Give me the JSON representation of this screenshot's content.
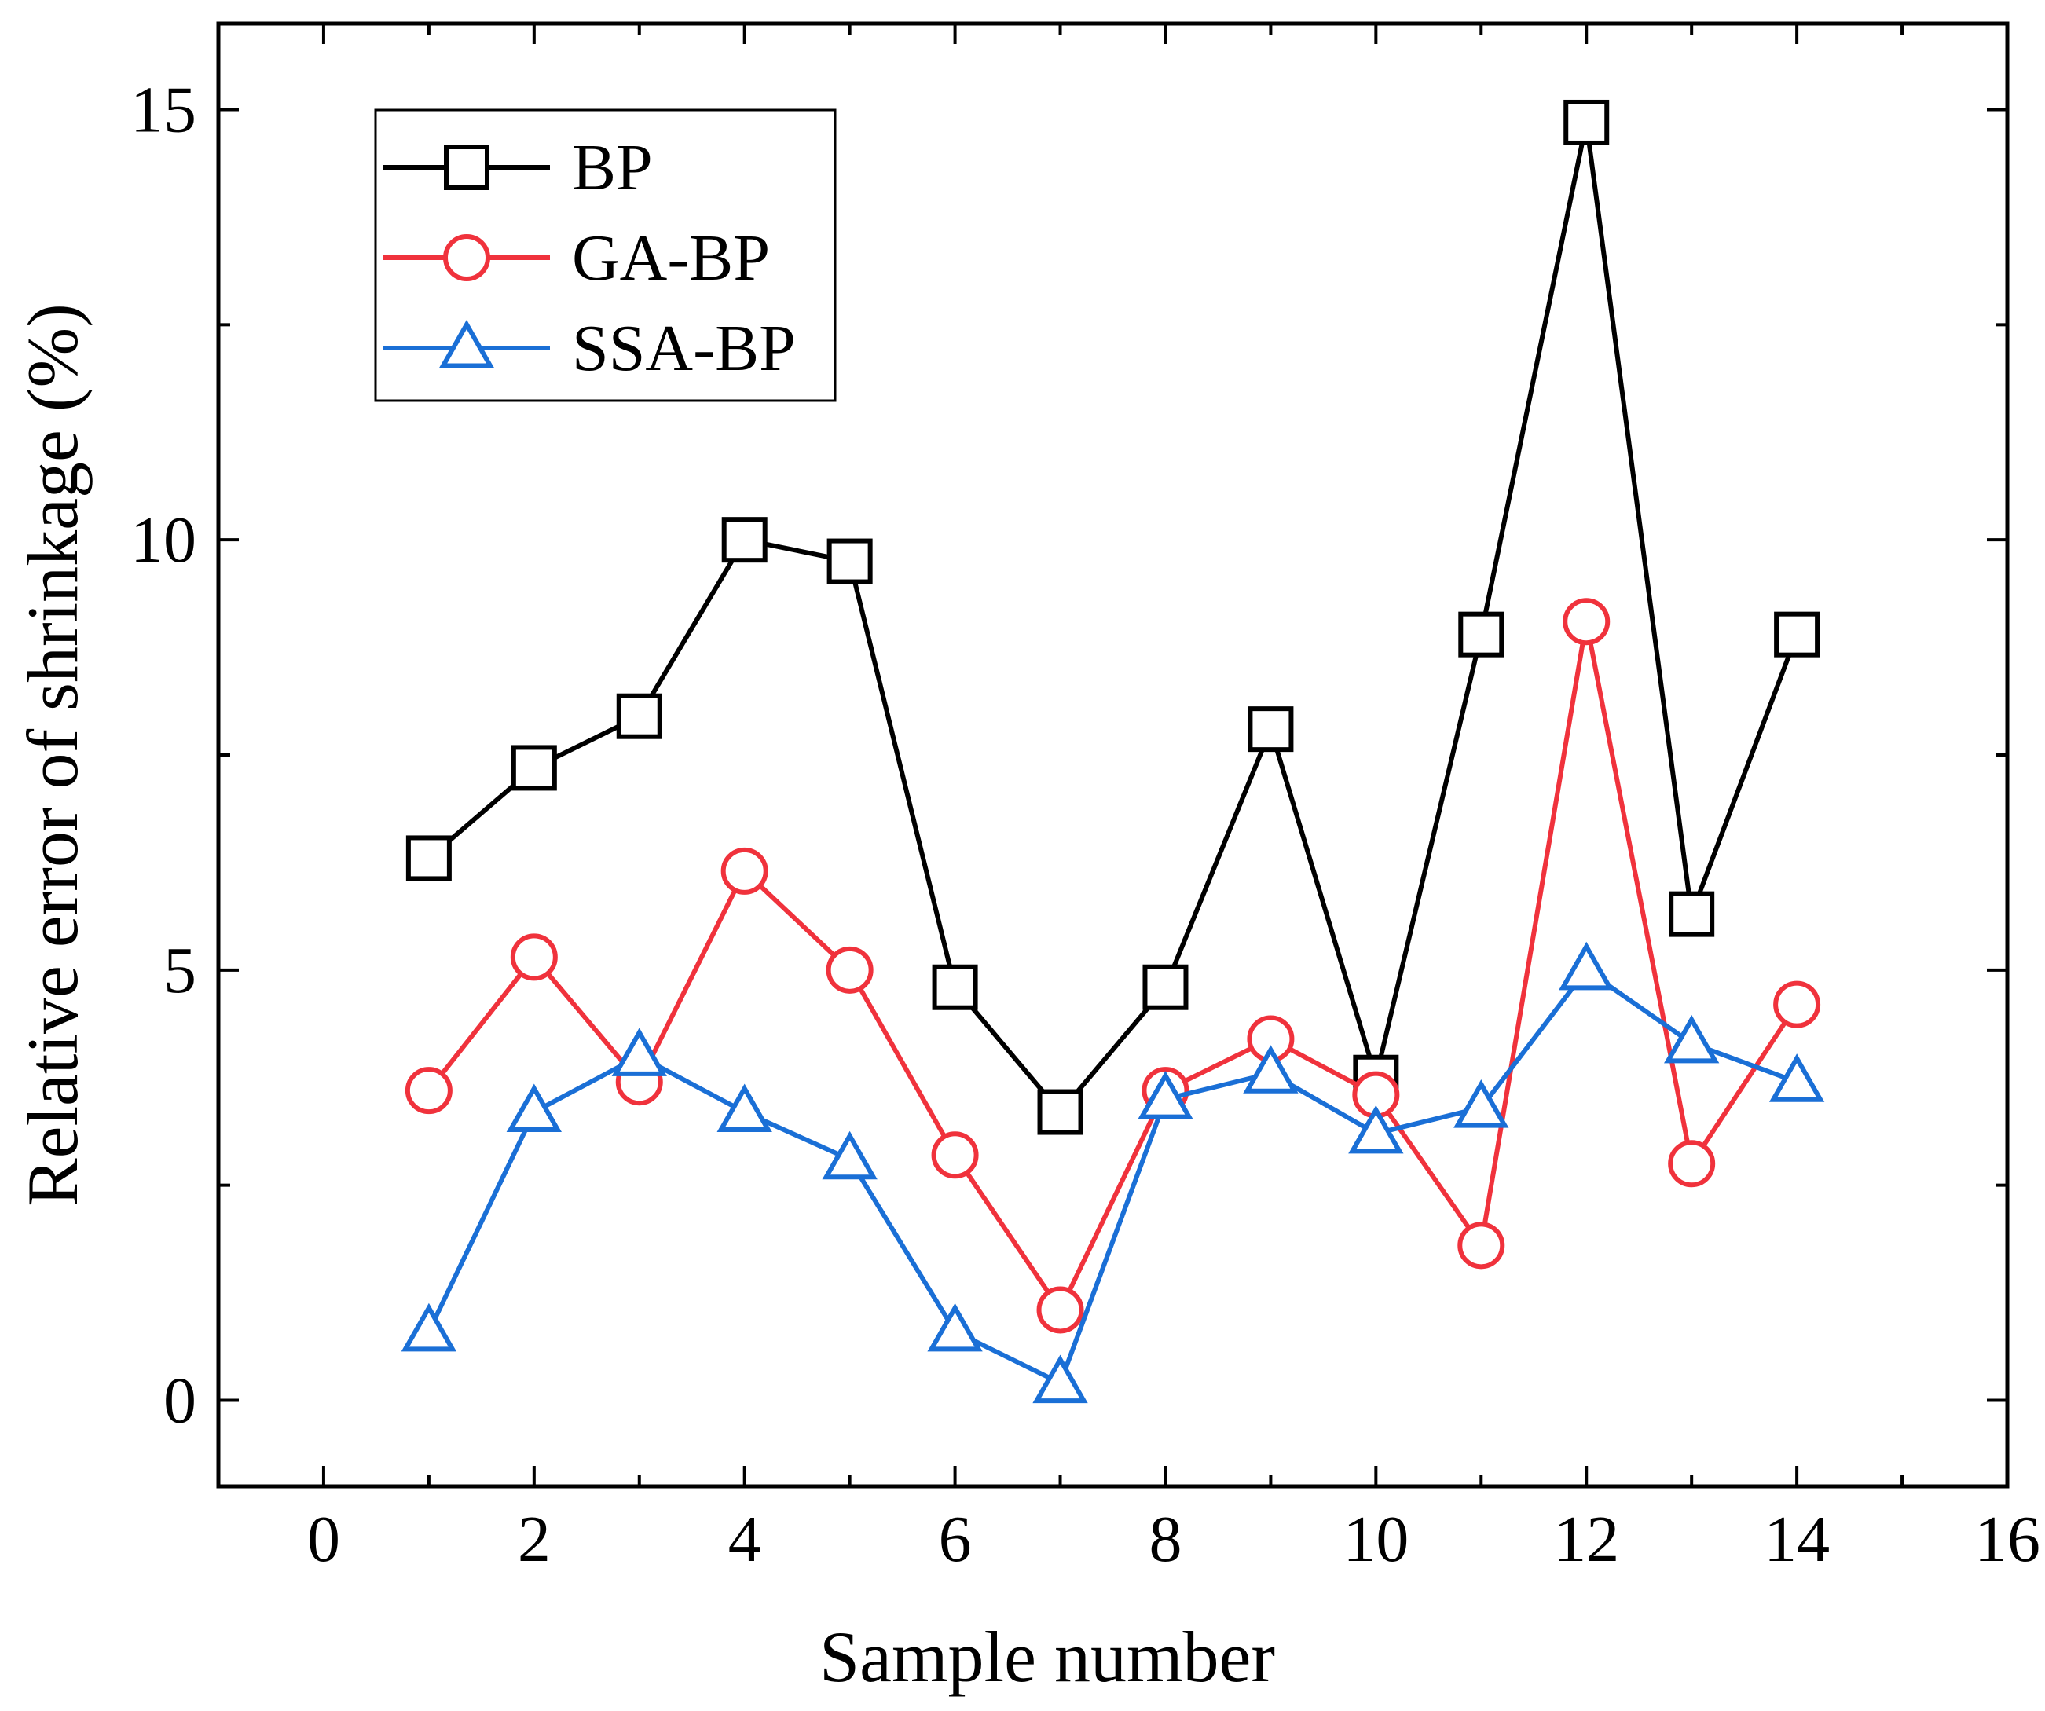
{
  "chart_data": {
    "type": "line",
    "title": "",
    "xlabel": "Sample number",
    "ylabel": "Relative error of shrinkage (%)",
    "xlim": [
      -1,
      16
    ],
    "ylim": [
      -1,
      16
    ],
    "xticks": [
      0,
      2,
      4,
      6,
      8,
      10,
      12,
      14,
      16
    ],
    "xtick_labels": [
      "0",
      "2",
      "4",
      "6",
      "8",
      "10",
      "12",
      "14",
      "16"
    ],
    "yticks": [
      0,
      5,
      10,
      15
    ],
    "ytick_labels": [
      "0",
      "5",
      "10",
      "15"
    ],
    "x": [
      1,
      2,
      3,
      4,
      5,
      6,
      7,
      8,
      9,
      10,
      11,
      12,
      13,
      14
    ],
    "grid": false,
    "legend_position": "top-left",
    "series": [
      {
        "name": "BP",
        "marker": "square",
        "color": "#000000",
        "values": [
          6.3,
          7.35,
          7.95,
          10.0,
          9.75,
          4.8,
          3.35,
          4.8,
          7.8,
          3.75,
          8.9,
          14.85,
          5.65,
          8.9
        ]
      },
      {
        "name": "GA-BP",
        "marker": "circle",
        "color": "#f0323c",
        "values": [
          3.6,
          5.15,
          3.7,
          6.15,
          5.0,
          2.85,
          1.05,
          3.6,
          4.2,
          3.55,
          1.8,
          9.05,
          2.75,
          4.6
        ]
      },
      {
        "name": "SSA-BP",
        "marker": "triangle",
        "color": "#1a6fd6",
        "values": [
          0.8,
          3.35,
          4.0,
          3.35,
          2.8,
          0.8,
          0.2,
          3.5,
          3.8,
          3.1,
          3.4,
          5.0,
          4.15,
          3.7
        ]
      }
    ]
  }
}
